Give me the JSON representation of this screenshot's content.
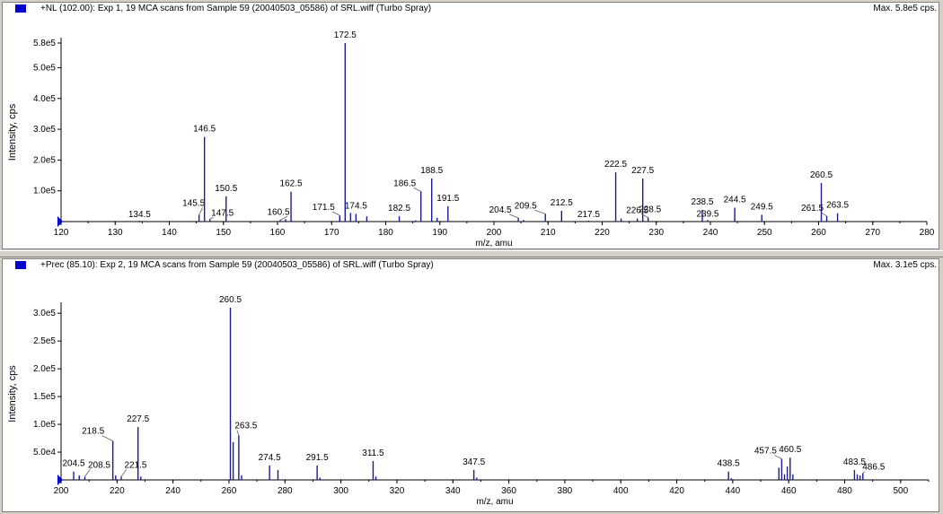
{
  "colors": {
    "spectrum_line": "#1a1a9a",
    "axis": "#000000",
    "marker": "#0000cc",
    "label_leader": "#606060"
  },
  "panels": [
    {
      "title": "+NL (102.00): Exp 1, 19 MCA scans from Sample 59 (20040503_05586) of SRL.wiff (Turbo Spray)",
      "max_label": "Max. 5.8e5 cps.",
      "marker_icon": "blue-square-icon"
    },
    {
      "title": "+Prec (85.10): Exp 2, 19 MCA scans from Sample 59 (20040503_05586) of SRL.wiff (Turbo Spray)",
      "max_label": "Max. 3.1e5 cps.",
      "marker_icon": "blue-square-icon"
    }
  ],
  "chart_data": [
    {
      "type": "bar",
      "title": "+NL (102.00): Exp 1, 19 MCA scans from Sample 59 (20040503_05586) of SRL.wiff (Turbo Spray)",
      "xlabel": "m/z, amu",
      "ylabel": "Intensity, cps",
      "xlim": [
        120,
        280
      ],
      "ylim": [
        0,
        580000
      ],
      "xticks": [
        120,
        130,
        140,
        150,
        160,
        170,
        180,
        190,
        200,
        210,
        220,
        230,
        240,
        250,
        260,
        270,
        280
      ],
      "yticks": [
        {
          "value": 100000,
          "label": "1.0e5"
        },
        {
          "value": 200000,
          "label": "2.0e5"
        },
        {
          "value": 300000,
          "label": "3.0e5"
        },
        {
          "value": 400000,
          "label": "4.0e5"
        },
        {
          "value": 500000,
          "label": "5.0e5"
        },
        {
          "value": 580000,
          "label": "5.8e5"
        }
      ],
      "grid": false,
      "peaks": [
        {
          "mz": 134.5,
          "intensity": 3000,
          "label": "134.5"
        },
        {
          "mz": 145.5,
          "intensity": 22000,
          "label": "145.5"
        },
        {
          "mz": 146.5,
          "intensity": 275000,
          "label": "146.5"
        },
        {
          "mz": 147.5,
          "intensity": 8000,
          "label": "147.5"
        },
        {
          "mz": 150.5,
          "intensity": 82000,
          "label": "150.5"
        },
        {
          "mz": 160.5,
          "intensity": 5000,
          "label": "160.5"
        },
        {
          "mz": 161.5,
          "intensity": 8000,
          "label": ""
        },
        {
          "mz": 162.5,
          "intensity": 97000,
          "label": "162.5"
        },
        {
          "mz": 171.5,
          "intensity": 20000,
          "label": "171.5"
        },
        {
          "mz": 172.5,
          "intensity": 580000,
          "label": "172.5"
        },
        {
          "mz": 173.5,
          "intensity": 28000,
          "label": ""
        },
        {
          "mz": 174.5,
          "intensity": 25000,
          "label": "174.5"
        },
        {
          "mz": 176.5,
          "intensity": 17000,
          "label": ""
        },
        {
          "mz": 182.5,
          "intensity": 18000,
          "label": "182.5"
        },
        {
          "mz": 185.5,
          "intensity": 4000,
          "label": ""
        },
        {
          "mz": 186.5,
          "intensity": 98000,
          "label": "186.5"
        },
        {
          "mz": 188.5,
          "intensity": 140000,
          "label": "188.5"
        },
        {
          "mz": 189.5,
          "intensity": 12000,
          "label": ""
        },
        {
          "mz": 191.5,
          "intensity": 50000,
          "label": "191.5"
        },
        {
          "mz": 204.5,
          "intensity": 12000,
          "label": "204.5"
        },
        {
          "mz": 205.5,
          "intensity": 5000,
          "label": ""
        },
        {
          "mz": 209.5,
          "intensity": 25000,
          "label": "209.5"
        },
        {
          "mz": 212.5,
          "intensity": 35000,
          "label": "212.5"
        },
        {
          "mz": 217.5,
          "intensity": 3000,
          "label": "217.5"
        },
        {
          "mz": 222.5,
          "intensity": 160000,
          "label": "222.5"
        },
        {
          "mz": 223.5,
          "intensity": 10000,
          "label": ""
        },
        {
          "mz": 226.5,
          "intensity": 10000,
          "label": "226.5"
        },
        {
          "mz": 227.5,
          "intensity": 140000,
          "label": "227.5"
        },
        {
          "mz": 228.5,
          "intensity": 13000,
          "label": "228.5"
        },
        {
          "mz": 238.5,
          "intensity": 38000,
          "label": "238.5"
        },
        {
          "mz": 239.5,
          "intensity": 5000,
          "label": "239.5"
        },
        {
          "mz": 244.5,
          "intensity": 45000,
          "label": "244.5"
        },
        {
          "mz": 249.5,
          "intensity": 22000,
          "label": "249.5"
        },
        {
          "mz": 260.5,
          "intensity": 125000,
          "label": "260.5"
        },
        {
          "mz": 261.5,
          "intensity": 18000,
          "label": "261.5"
        },
        {
          "mz": 263.5,
          "intensity": 27000,
          "label": "263.5"
        }
      ]
    },
    {
      "type": "bar",
      "title": "+Prec (85.10): Exp 2, 19 MCA scans from Sample 59 (20040503_05586) of SRL.wiff (Turbo Spray)",
      "xlabel": "m/z, amu",
      "ylabel": "Intensity, cps",
      "xlim": [
        200,
        510
      ],
      "ylim": [
        0,
        310000
      ],
      "xticks": [
        200,
        220,
        240,
        260,
        280,
        300,
        320,
        340,
        360,
        380,
        400,
        420,
        440,
        460,
        480,
        500
      ],
      "yticks": [
        {
          "value": 50000,
          "label": "5.0e4"
        },
        {
          "value": 100000,
          "label": "1.0e5"
        },
        {
          "value": 150000,
          "label": "1.5e5"
        },
        {
          "value": 200000,
          "label": "2.0e5"
        },
        {
          "value": 250000,
          "label": "2.5e5"
        },
        {
          "value": 300000,
          "label": "3.0e5"
        }
      ],
      "grid": false,
      "peaks": [
        {
          "mz": 204.5,
          "intensity": 15000,
          "label": "204.5"
        },
        {
          "mz": 206.5,
          "intensity": 8000,
          "label": ""
        },
        {
          "mz": 208.5,
          "intensity": 6000,
          "label": "208.5"
        },
        {
          "mz": 218.5,
          "intensity": 70000,
          "label": "218.5"
        },
        {
          "mz": 219.5,
          "intensity": 8000,
          "label": ""
        },
        {
          "mz": 221.5,
          "intensity": 6000,
          "label": "221.5"
        },
        {
          "mz": 227.5,
          "intensity": 95000,
          "label": "227.5"
        },
        {
          "mz": 228.5,
          "intensity": 6000,
          "label": ""
        },
        {
          "mz": 260.5,
          "intensity": 310000,
          "label": "260.5"
        },
        {
          "mz": 261.5,
          "intensity": 68000,
          "label": ""
        },
        {
          "mz": 263.5,
          "intensity": 80000,
          "label": "263.5"
        },
        {
          "mz": 264.5,
          "intensity": 8000,
          "label": ""
        },
        {
          "mz": 274.5,
          "intensity": 26000,
          "label": "274.5"
        },
        {
          "mz": 277.5,
          "intensity": 18000,
          "label": ""
        },
        {
          "mz": 291.5,
          "intensity": 26000,
          "label": "291.5"
        },
        {
          "mz": 292.5,
          "intensity": 4000,
          "label": ""
        },
        {
          "mz": 311.5,
          "intensity": 34000,
          "label": "311.5"
        },
        {
          "mz": 312.5,
          "intensity": 6000,
          "label": ""
        },
        {
          "mz": 347.5,
          "intensity": 18000,
          "label": "347.5"
        },
        {
          "mz": 348.5,
          "intensity": 4000,
          "label": ""
        },
        {
          "mz": 438.5,
          "intensity": 15000,
          "label": "438.5"
        },
        {
          "mz": 439.5,
          "intensity": 3000,
          "label": ""
        },
        {
          "mz": 456.5,
          "intensity": 22000,
          "label": ""
        },
        {
          "mz": 457.5,
          "intensity": 38000,
          "label": "457.5"
        },
        {
          "mz": 458.5,
          "intensity": 10000,
          "label": ""
        },
        {
          "mz": 459.5,
          "intensity": 24000,
          "label": ""
        },
        {
          "mz": 460.5,
          "intensity": 40000,
          "label": "460.5"
        },
        {
          "mz": 461.5,
          "intensity": 10000,
          "label": ""
        },
        {
          "mz": 483.5,
          "intensity": 18000,
          "label": "483.5"
        },
        {
          "mz": 484.5,
          "intensity": 10000,
          "label": ""
        },
        {
          "mz": 485.5,
          "intensity": 8000,
          "label": ""
        },
        {
          "mz": 486.5,
          "intensity": 12000,
          "label": "486.5"
        }
      ]
    }
  ]
}
